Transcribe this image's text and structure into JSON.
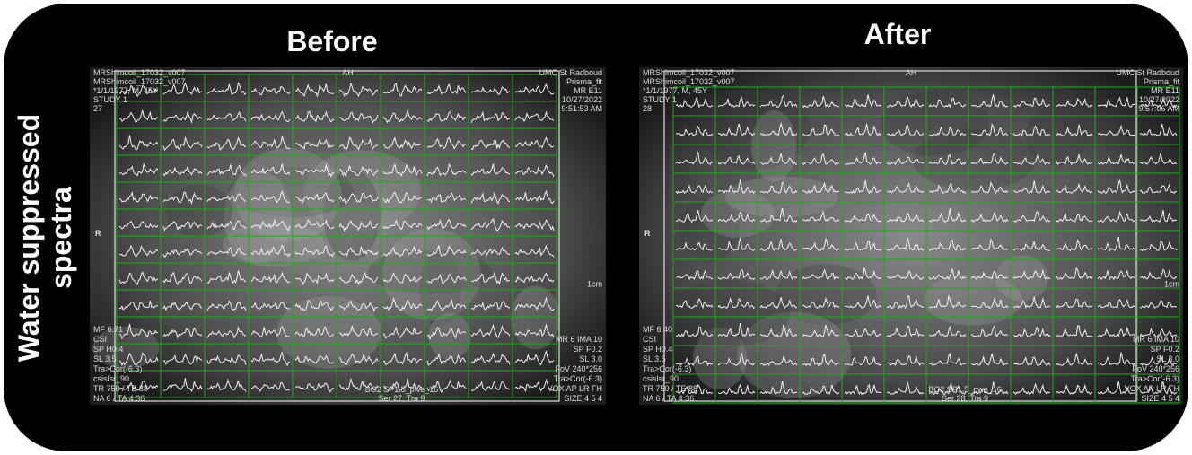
{
  "header": {
    "panel_titles": [
      "Before",
      "After"
    ],
    "row_label": [
      "Water suppressed",
      "spectra"
    ]
  },
  "panels": [
    {
      "top_left": [
        "MRShimcoil_17032_v007",
        "MRShimcoil_17032_v007",
        "*1/1/1977, M, 45Y",
        "STUDY 1",
        "27"
      ],
      "top_center": "AH",
      "top_right": [
        "UMC St Radboud",
        "Prisma_fit",
        "MR E11",
        "10/27/2022",
        "9:51:53 AM"
      ],
      "left_mid": "R",
      "right_mid": "1cm",
      "bottom_left": [
        "MF 6.71",
        "CSI",
        "SP H0.4",
        "SL 3.5",
        "Tra>Cor(-6.3)",
        "csislsr_90",
        "TR 750 / TE 88",
        "NA 6 / TA 4:36"
      ],
      "bottom_center": [
        "BO2 SP1.5_pwe_16",
        "Ser 27, Tra 9"
      ],
      "bottom_right": [
        "MR 6 IMA 10",
        "SP F0.2",
        "SL 3.0",
        "FoV 240*256",
        "Tra>Cor(-6.3)",
        "VOX AP LR FH",
        "SIZE 4 5 4"
      ]
    },
    {
      "top_left": [
        "MRShimcoil_17032_v007",
        "MRShimcoil_17032_v007",
        "*1/1/1977, M, 45Y",
        "STUDY 1",
        "28"
      ],
      "top_center": "AH",
      "top_right": [
        "UMC St Radboud",
        "Prisma_fit",
        "MR E11",
        "10/27/2022",
        "9:57:06 AM"
      ],
      "left_mid": "R",
      "right_mid": "1cm",
      "bottom_left": [
        "MF 6.40",
        "CSI",
        "SP H0.4",
        "SL 3.5",
        "Tra>Cor(-6.3)",
        "csislsr_90",
        "TR 750 / TE 88",
        "NA 6 / TA 4:36"
      ],
      "bottom_center": [
        "BO2 SP1.5_pwe_16",
        "Ser 28, Tra 9"
      ],
      "bottom_right": [
        "MR 6 IMA 10",
        "SP F0.2",
        "SL 3.0",
        "FoV 240*256",
        "Tra>Cor(-6.3)",
        "VOX AP LR FH",
        "SIZE 4 5 4"
      ]
    }
  ]
}
